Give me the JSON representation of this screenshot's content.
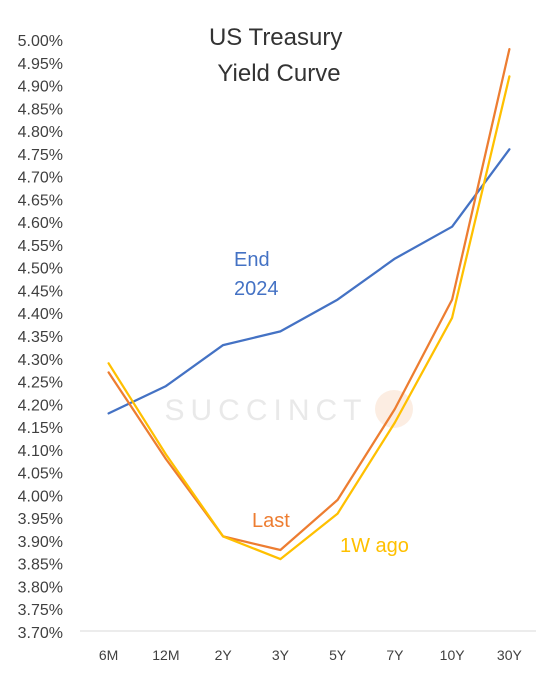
{
  "chart_data": {
    "type": "line",
    "title_lines": [
      "US Treasury",
      "Yield Curve"
    ],
    "categories": [
      "6M",
      "12M",
      "2Y",
      "3Y",
      "5Y",
      "7Y",
      "10Y",
      "30Y"
    ],
    "ylim": [
      3.7,
      5.0
    ],
    "y_ticks": [
      "3.70%",
      "3.75%",
      "3.80%",
      "3.85%",
      "3.90%",
      "3.95%",
      "4.00%",
      "4.05%",
      "4.10%",
      "4.15%",
      "4.20%",
      "4.25%",
      "4.30%",
      "4.35%",
      "4.40%",
      "4.45%",
      "4.50%",
      "4.55%",
      "4.60%",
      "4.65%",
      "4.70%",
      "4.75%",
      "4.80%",
      "4.85%",
      "4.90%",
      "4.95%",
      "5.00%"
    ],
    "grid": false,
    "watermark": "SUCCINCT",
    "series": [
      {
        "label_lines": [
          "End",
          "2024"
        ],
        "color": "#4472c4",
        "values": [
          4.18,
          4.24,
          4.33,
          4.36,
          4.43,
          4.52,
          4.59,
          4.76
        ]
      },
      {
        "label_lines": [
          "Last"
        ],
        "color": "#ed7d31",
        "values": [
          4.27,
          4.08,
          3.91,
          3.88,
          3.99,
          4.19,
          4.43,
          4.98
        ]
      },
      {
        "label_lines": [
          "1W ago"
        ],
        "color": "#ffc000",
        "values": [
          4.29,
          4.09,
          3.91,
          3.86,
          3.96,
          4.16,
          4.39,
          4.92
        ]
      }
    ]
  }
}
